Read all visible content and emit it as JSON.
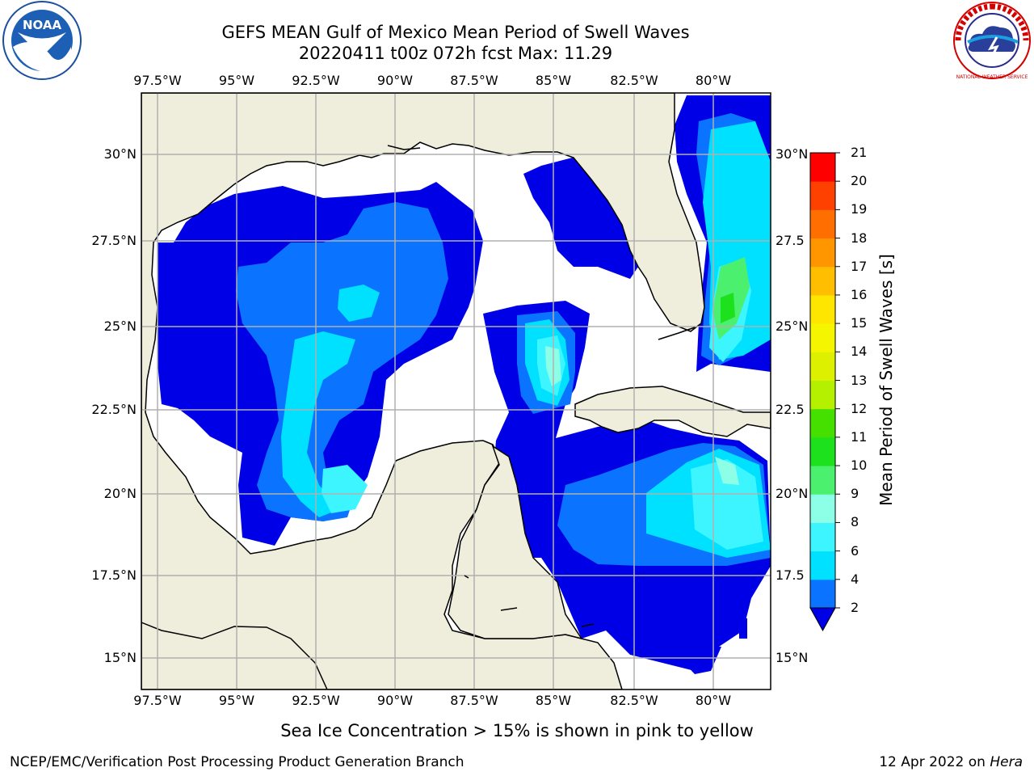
{
  "header": {
    "title_line1": "GEFS MEAN Gulf of Mexico Mean Period of Swell Waves",
    "title_line2": "20220411 t00z 072h fcst   Max: 11.29"
  },
  "logos": {
    "left": {
      "icon": "noaa-logo-icon",
      "text": "NOAA"
    },
    "right": {
      "icon": "national-weather-service-logo-icon",
      "text": "NATIONAL WEATHER SERVICE"
    }
  },
  "map": {
    "lon_ticks": [
      "97.5°W",
      "95°W",
      "92.5°W",
      "90°W",
      "87.5°W",
      "85°W",
      "82.5°W",
      "80°W"
    ],
    "lat_ticks_left": [
      "30°N",
      "27.5°N",
      "25°N",
      "22.5°N",
      "20°N",
      "17.5°N",
      "15°N"
    ],
    "lat_ticks_right": [
      "30°N",
      "27.5",
      "25°N",
      "22.5",
      "20°N",
      "17.5",
      "15°N"
    ],
    "colors": {
      "land": "#efeedc",
      "coast": "#000000",
      "grid": "#b0b0b0"
    }
  },
  "colorbar": {
    "label": "Mean Period of Swell Waves [s]",
    "ticks": [
      "2",
      "4",
      "6",
      "8",
      "9",
      "10",
      "11",
      "12",
      "13",
      "14",
      "15",
      "16",
      "17",
      "18",
      "19",
      "20",
      "21"
    ],
    "bins": [
      {
        "range": "2-4",
        "color": "#0a73ff"
      },
      {
        "range": "4-6",
        "color": "#00e1ff"
      },
      {
        "range": "6-8",
        "color": "#3cf5ff"
      },
      {
        "range": "8-9",
        "color": "#8cffe6"
      },
      {
        "range": "9-10",
        "color": "#4bf06e"
      },
      {
        "range": "10-11",
        "color": "#1ee11e"
      },
      {
        "range": "11-12",
        "color": "#45e000"
      },
      {
        "range": "12-13",
        "color": "#b4f000"
      },
      {
        "range": "13-14",
        "color": "#dcf000"
      },
      {
        "range": "14-15",
        "color": "#f5f500"
      },
      {
        "range": "15-16",
        "color": "#ffe600"
      },
      {
        "range": "16-17",
        "color": "#ffbe00"
      },
      {
        "range": "17-18",
        "color": "#ff9600"
      },
      {
        "range": "18-19",
        "color": "#ff6e00"
      },
      {
        "range": "19-20",
        "color": "#ff4100"
      },
      {
        "range": "20-21",
        "color": "#ff0000"
      }
    ],
    "under_color": "#0000e6"
  },
  "footer": {
    "note": "Sea Ice Concentration > 15% is shown in pink to yellow",
    "credit": "NCEP/EMC/Verification Post Processing Product Generation Branch",
    "date_prefix": "12 Apr 2022 on ",
    "date_host": "Hera"
  }
}
